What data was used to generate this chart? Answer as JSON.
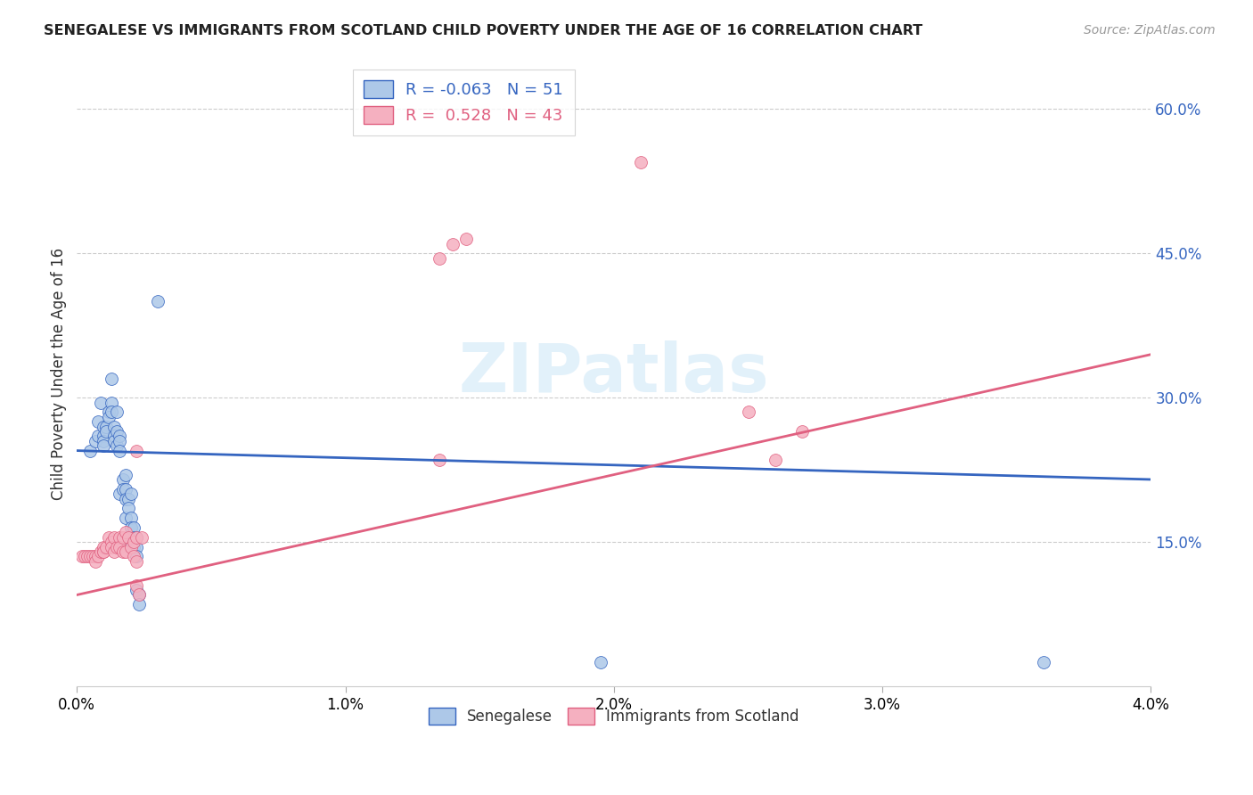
{
  "title": "SENEGALESE VS IMMIGRANTS FROM SCOTLAND CHILD POVERTY UNDER THE AGE OF 16 CORRELATION CHART",
  "source": "Source: ZipAtlas.com",
  "ylabel": "Child Poverty Under the Age of 16",
  "xlabel_blue": "Senegalese",
  "xlabel_pink": "Immigrants from Scotland",
  "r_blue": -0.063,
  "n_blue": 51,
  "r_pink": 0.528,
  "n_pink": 43,
  "color_blue": "#adc8e8",
  "color_pink": "#f5b0c0",
  "line_color_blue": "#3565c0",
  "line_color_pink": "#e06080",
  "xlim": [
    0.0,
    0.04
  ],
  "ylim": [
    0.0,
    0.65
  ],
  "xtick_vals": [
    0.0,
    0.01,
    0.02,
    0.03,
    0.04
  ],
  "xtick_labels": [
    "0.0%",
    "1.0%",
    "2.0%",
    "3.0%",
    "4.0%"
  ],
  "ytick_vals": [
    0.15,
    0.3,
    0.45,
    0.6
  ],
  "ytick_labels": [
    "15.0%",
    "30.0%",
    "45.0%",
    "60.0%"
  ],
  "blue_line": [
    0.0,
    0.04,
    0.245,
    0.215
  ],
  "pink_line": [
    0.0,
    0.04,
    0.095,
    0.345
  ],
  "blue_scatter": [
    [
      0.0005,
      0.245
    ],
    [
      0.0007,
      0.255
    ],
    [
      0.0008,
      0.26
    ],
    [
      0.0008,
      0.275
    ],
    [
      0.0009,
      0.295
    ],
    [
      0.001,
      0.27
    ],
    [
      0.001,
      0.26
    ],
    [
      0.001,
      0.255
    ],
    [
      0.001,
      0.25
    ],
    [
      0.0011,
      0.27
    ],
    [
      0.0011,
      0.265
    ],
    [
      0.0012,
      0.285
    ],
    [
      0.0012,
      0.28
    ],
    [
      0.0013,
      0.32
    ],
    [
      0.0013,
      0.295
    ],
    [
      0.0013,
      0.285
    ],
    [
      0.0014,
      0.27
    ],
    [
      0.0014,
      0.26
    ],
    [
      0.0014,
      0.255
    ],
    [
      0.0015,
      0.285
    ],
    [
      0.0015,
      0.265
    ],
    [
      0.0015,
      0.25
    ],
    [
      0.0016,
      0.26
    ],
    [
      0.0016,
      0.255
    ],
    [
      0.0016,
      0.245
    ],
    [
      0.0016,
      0.2
    ],
    [
      0.0017,
      0.215
    ],
    [
      0.0017,
      0.205
    ],
    [
      0.0018,
      0.22
    ],
    [
      0.0018,
      0.205
    ],
    [
      0.0018,
      0.195
    ],
    [
      0.0018,
      0.175
    ],
    [
      0.0019,
      0.195
    ],
    [
      0.0019,
      0.185
    ],
    [
      0.002,
      0.2
    ],
    [
      0.002,
      0.175
    ],
    [
      0.002,
      0.165
    ],
    [
      0.002,
      0.155
    ],
    [
      0.002,
      0.145
    ],
    [
      0.0021,
      0.165
    ],
    [
      0.0021,
      0.155
    ],
    [
      0.0021,
      0.145
    ],
    [
      0.0022,
      0.155
    ],
    [
      0.003,
      0.4
    ],
    [
      0.0022,
      0.145
    ],
    [
      0.0022,
      0.135
    ],
    [
      0.0022,
      0.1
    ],
    [
      0.0023,
      0.095
    ],
    [
      0.0023,
      0.085
    ],
    [
      0.0195,
      0.025
    ],
    [
      0.036,
      0.025
    ]
  ],
  "pink_scatter": [
    [
      0.0002,
      0.135
    ],
    [
      0.0003,
      0.135
    ],
    [
      0.0004,
      0.135
    ],
    [
      0.0005,
      0.135
    ],
    [
      0.0006,
      0.135
    ],
    [
      0.0007,
      0.135
    ],
    [
      0.0007,
      0.13
    ],
    [
      0.0008,
      0.135
    ],
    [
      0.0009,
      0.14
    ],
    [
      0.001,
      0.14
    ],
    [
      0.001,
      0.145
    ],
    [
      0.001,
      0.14
    ],
    [
      0.0011,
      0.145
    ],
    [
      0.0012,
      0.155
    ],
    [
      0.0013,
      0.15
    ],
    [
      0.0013,
      0.145
    ],
    [
      0.0014,
      0.155
    ],
    [
      0.0014,
      0.14
    ],
    [
      0.0015,
      0.145
    ],
    [
      0.0016,
      0.155
    ],
    [
      0.0016,
      0.145
    ],
    [
      0.0017,
      0.155
    ],
    [
      0.0017,
      0.14
    ],
    [
      0.0018,
      0.16
    ],
    [
      0.0018,
      0.14
    ],
    [
      0.0019,
      0.155
    ],
    [
      0.002,
      0.145
    ],
    [
      0.0021,
      0.15
    ],
    [
      0.0021,
      0.135
    ],
    [
      0.0022,
      0.155
    ],
    [
      0.0022,
      0.13
    ],
    [
      0.0022,
      0.105
    ],
    [
      0.0023,
      0.095
    ],
    [
      0.0022,
      0.245
    ],
    [
      0.0024,
      0.155
    ],
    [
      0.0135,
      0.235
    ],
    [
      0.0135,
      0.445
    ],
    [
      0.014,
      0.46
    ],
    [
      0.0145,
      0.465
    ],
    [
      0.021,
      0.545
    ],
    [
      0.025,
      0.285
    ],
    [
      0.026,
      0.235
    ],
    [
      0.027,
      0.265
    ]
  ],
  "watermark": "ZIPatlas",
  "background_color": "#ffffff",
  "grid_color": "#cccccc"
}
